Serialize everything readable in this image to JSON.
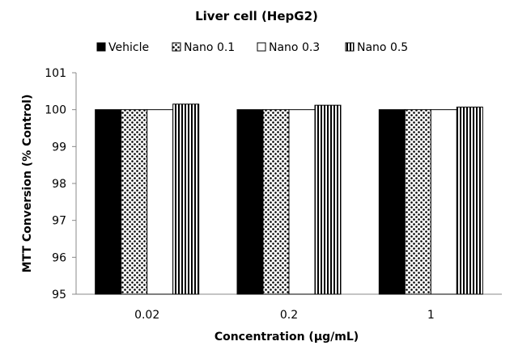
{
  "chart_data": {
    "type": "bar",
    "title": "Liver cell  (HepG2)",
    "xlabel": "Concentration (μg/mL)",
    "ylabel": "MTT Conversion (% Control)",
    "categories": [
      "0.02",
      "0.2",
      "1"
    ],
    "ylim": [
      95,
      101
    ],
    "yticks": [
      95,
      96,
      97,
      98,
      99,
      100,
      101
    ],
    "grid": false,
    "legend_position": "top",
    "series": [
      {
        "name": "Vehicle",
        "values": [
          100,
          100,
          100
        ],
        "pattern": "solid-black"
      },
      {
        "name": "Nano 0.1",
        "values": [
          100,
          100,
          100
        ],
        "pattern": "dots"
      },
      {
        "name": "Nano 0.3",
        "values": [
          100,
          100,
          100
        ],
        "pattern": "white"
      },
      {
        "name": "Nano 0.5",
        "values": [
          100.15,
          100.12,
          100.07
        ],
        "pattern": "vertical-stripes"
      }
    ]
  }
}
